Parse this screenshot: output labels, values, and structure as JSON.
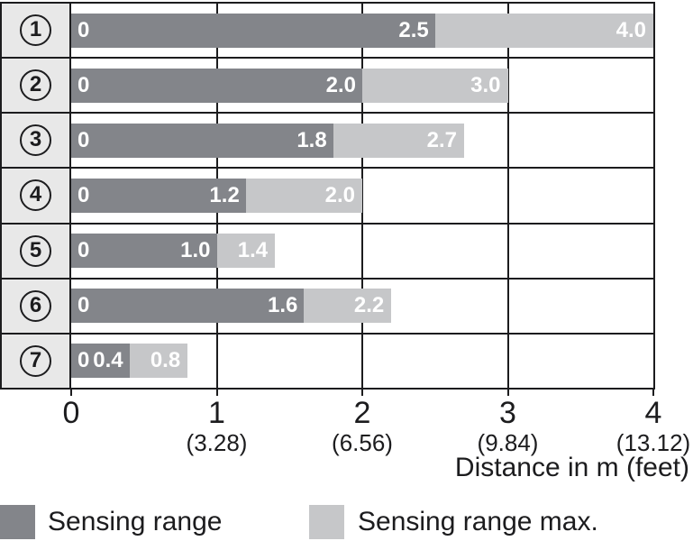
{
  "chart_data": {
    "type": "bar",
    "orientation": "horizontal-stacked",
    "categories": [
      "1",
      "2",
      "3",
      "4",
      "5",
      "6",
      "7"
    ],
    "category_style": "circled-digit",
    "zero_label": "0",
    "series": [
      {
        "name": "Sensing range",
        "values": [
          2.5,
          2.0,
          1.8,
          1.2,
          1.0,
          1.6,
          0.4
        ],
        "labels": [
          "2.5",
          "2.0",
          "1.8",
          "1.2",
          "1.0",
          "1.6",
          "0.4"
        ],
        "color": "#83858a"
      },
      {
        "name": "Sensing range max.",
        "values": [
          4.0,
          3.0,
          2.7,
          2.0,
          1.4,
          2.2,
          0.8
        ],
        "labels": [
          "4.0",
          "3.0",
          "2.7",
          "2.0",
          "1.4",
          "2.2",
          "0.8"
        ],
        "color": "#c6c7c9"
      }
    ],
    "xlabel": "Distance in m (feet)",
    "xlim": [
      0,
      4
    ],
    "x_ticks": [
      {
        "m": "0",
        "feet": ""
      },
      {
        "m": "1",
        "feet": "(3.28)"
      },
      {
        "m": "2",
        "feet": "(6.56)"
      },
      {
        "m": "3",
        "feet": "(9.84)"
      },
      {
        "m": "4",
        "feet": "(13.12)"
      }
    ],
    "grid": true,
    "legend_position": "bottom"
  },
  "legend": {
    "items": [
      {
        "label": "Sensing range",
        "color": "#83858a"
      },
      {
        "label": "Sensing range max.",
        "color": "#c6c7c9"
      }
    ]
  },
  "colors": {
    "sensing_range": "#83858a",
    "sensing_range_max": "#c6c7c9",
    "category_cell_bg": "#e8e8e8",
    "border": "#1c1c1e",
    "bar_label_text": "#ffffff",
    "background": "#ffffff"
  }
}
